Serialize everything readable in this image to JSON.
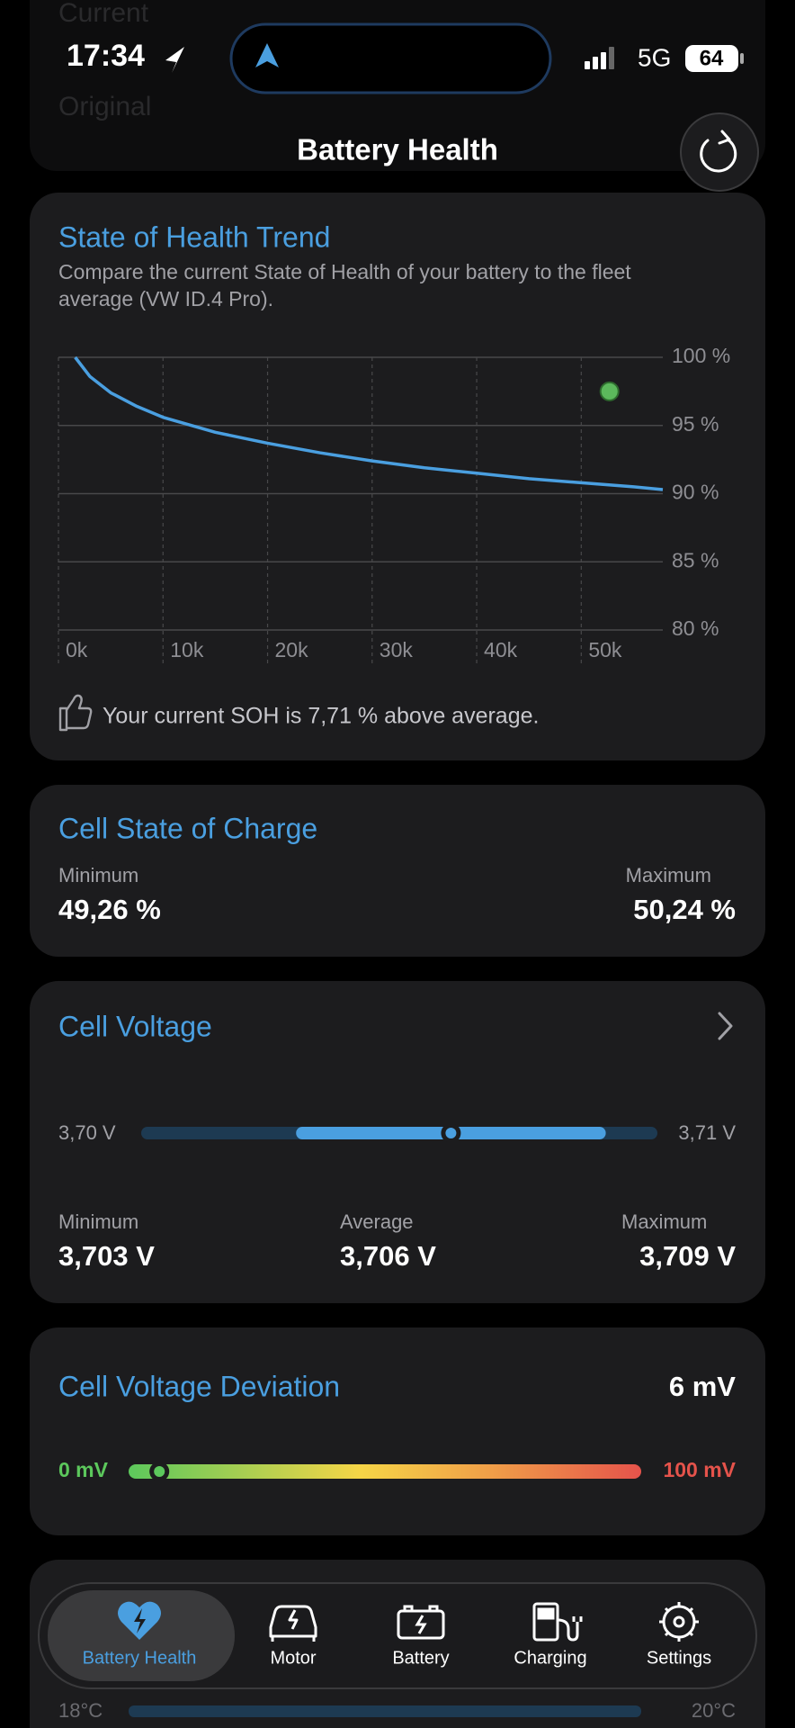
{
  "status_bar": {
    "time": "17:34",
    "network": "5G",
    "battery": "64"
  },
  "background_rows": [
    "Current",
    "Original"
  ],
  "header": {
    "title": "Battery Health"
  },
  "chart_data": {
    "type": "line",
    "title": "State of Health Trend",
    "subtitle": [
      "Compare the current State of Health of your battery to the fleet",
      "average (VW ID.4 Pro)."
    ],
    "x": [
      1600,
      3000,
      5000,
      7500,
      10000,
      15000,
      20000,
      25000,
      30000,
      35000,
      40000,
      45000,
      50000,
      55000,
      57800
    ],
    "values": [
      100,
      98.6,
      97.4,
      96.4,
      95.6,
      94.5,
      93.7,
      93.0,
      92.4,
      91.9,
      91.5,
      91.1,
      90.8,
      90.5,
      90.3
    ],
    "color": "#4a9fe0",
    "marker": {
      "x": 52700,
      "y": 97.5,
      "color": "#5cb85c"
    },
    "xlim": [
      0,
      57800
    ],
    "ylim": [
      80,
      100
    ],
    "xticks": [
      {
        "value": 0,
        "label": "0k"
      },
      {
        "value": 10000,
        "label": "10k"
      },
      {
        "value": 20000,
        "label": "20k"
      },
      {
        "value": 30000,
        "label": "30k"
      },
      {
        "value": 40000,
        "label": "40k"
      },
      {
        "value": 50000,
        "label": "50k"
      }
    ],
    "yticks": [
      {
        "value": 100,
        "label": "100 %"
      },
      {
        "value": 95,
        "label": "95 %"
      },
      {
        "value": 90,
        "label": "90 %"
      },
      {
        "value": 85,
        "label": "85 %"
      },
      {
        "value": 80,
        "label": "80 %"
      }
    ],
    "grid": true
  },
  "soh_summary": "Your current SOH is 7,71 % above average.",
  "cell_soc": {
    "title": "Cell State of Charge",
    "stats": [
      {
        "name": "Minimum",
        "value": "49,26 %"
      },
      {
        "name": "Maximum",
        "value": "50,24 %"
      }
    ]
  },
  "cell_voltage": {
    "title": "Cell Voltage",
    "range": [
      {
        "value": 3.7,
        "label": "3,70 V"
      },
      {
        "value": 3.71,
        "label": "3,71 V"
      }
    ],
    "stats": [
      {
        "name": "Minimum",
        "value": 3.703,
        "label": "3,703 V"
      },
      {
        "name": "Average",
        "value": 3.706,
        "label": "3,706 V"
      },
      {
        "name": "Maximum",
        "value": 3.709,
        "label": "3,709 V"
      }
    ]
  },
  "voltage_deviation": {
    "title": "Cell Voltage Deviation",
    "value": {
      "value": 6,
      "label": "6 mV"
    },
    "range": [
      {
        "value": 0,
        "label": "0 mV"
      },
      {
        "value": 100,
        "label": "100 mV"
      }
    ]
  },
  "temperature_range": [
    "18°C",
    "20°C"
  ],
  "tabs": [
    "Battery Health",
    "Motor",
    "Battery",
    "Charging",
    "Settings"
  ]
}
